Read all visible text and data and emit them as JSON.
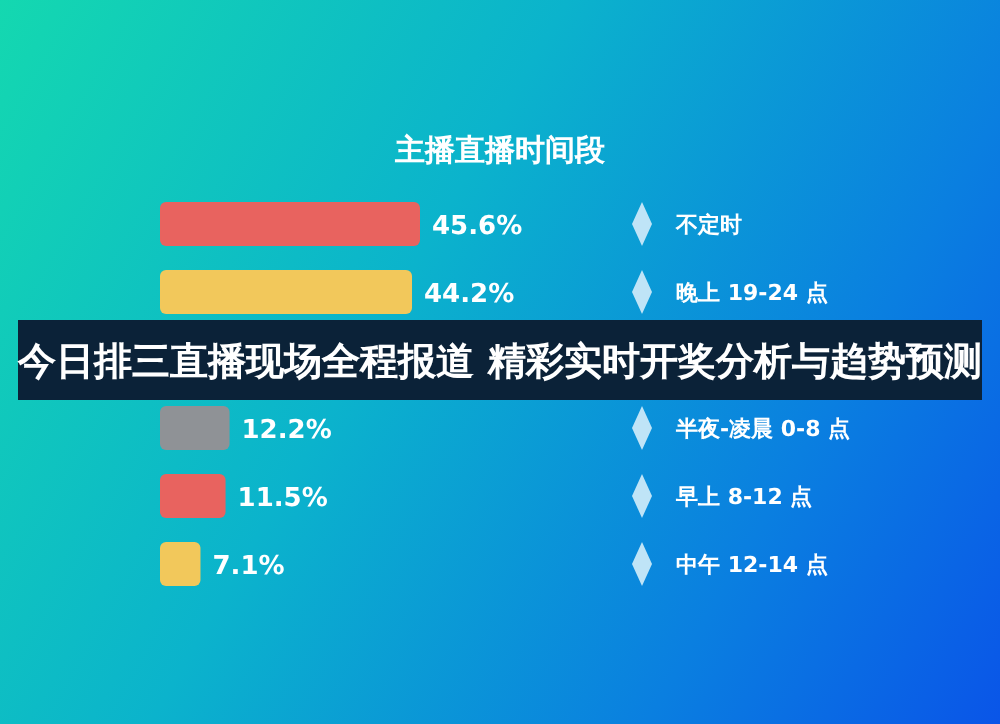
{
  "chart_data": {
    "type": "bar",
    "orientation": "horizontal",
    "title": "主播直播时间段",
    "categories": [
      "不定时",
      "晚上 19-24 点",
      null,
      "半夜-凌晨 0-8 点",
      "早上 8-12 点",
      "中午 12-14 点"
    ],
    "values": [
      45.6,
      44.2,
      null,
      12.2,
      11.5,
      7.1
    ],
    "value_labels": [
      "45.6%",
      "44.2%",
      null,
      "12.2%",
      "11.5%",
      "7.1%"
    ],
    "colors": [
      "#e8635f",
      "#f2c85b",
      null,
      "#8f9296",
      "#e8635f",
      "#f2c85b"
    ],
    "annotations": [
      "今日排三直播现场全程报道 精彩实时开奖分析与趋势预测"
    ]
  }
}
